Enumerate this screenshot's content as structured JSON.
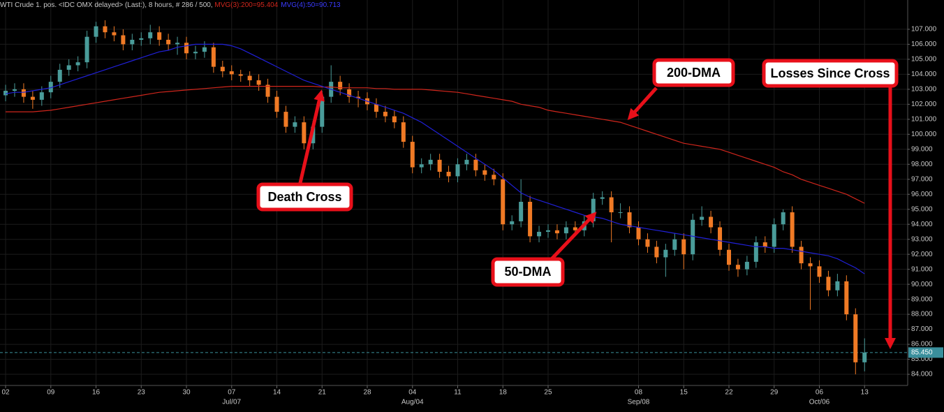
{
  "chart_data": {
    "type": "candlestick",
    "header": {
      "title": "WTI Crude 1. pos. <IDC OMX delayed> (Last:), 8 hours, # 286 / 500, "
    },
    "xlim": [
      -0.62,
      99.77
    ],
    "xticks": [
      {
        "value": 0,
        "label": "02"
      },
      {
        "value": 5,
        "label": "09"
      },
      {
        "value": 10,
        "label": "16"
      },
      {
        "value": 15,
        "label": "23"
      },
      {
        "value": 20,
        "label": "30"
      },
      {
        "value": 25,
        "label": "07"
      },
      {
        "value": 30,
        "label": "14"
      },
      {
        "value": 35,
        "label": "21"
      },
      {
        "value": 40,
        "label": "28"
      },
      {
        "value": 45,
        "label": "04"
      },
      {
        "value": 50,
        "label": "11"
      },
      {
        "value": 55,
        "label": "18"
      },
      {
        "value": 60,
        "label": "25"
      },
      {
        "value": 70,
        "label": "08"
      },
      {
        "value": 75,
        "label": "15"
      },
      {
        "value": 80,
        "label": "22"
      },
      {
        "value": 85,
        "label": "29"
      },
      {
        "value": 90,
        "label": "06"
      },
      {
        "value": 95,
        "label": "13"
      }
    ],
    "month_ticks": [
      {
        "value": 25,
        "label": "Jul/07"
      },
      {
        "value": 45,
        "label": "Aug/04"
      },
      {
        "value": 70,
        "label": "Sep/08"
      },
      {
        "value": 90,
        "label": "Oct/06"
      }
    ],
    "ylim": [
      83.35,
      108.3
    ],
    "yticks": [
      {
        "value": 84,
        "label": "84.000"
      },
      {
        "value": 85,
        "label": "85.000"
      },
      {
        "value": 86,
        "label": "86.000"
      },
      {
        "value": 87,
        "label": "87.000"
      },
      {
        "value": 88,
        "label": "88.000"
      },
      {
        "value": 89,
        "label": "89.000"
      },
      {
        "value": 90,
        "label": "90.000"
      },
      {
        "value": 91,
        "label": "91.000"
      },
      {
        "value": 92,
        "label": "92.000"
      },
      {
        "value": 93,
        "label": "93.000"
      },
      {
        "value": 94,
        "label": "94.000"
      },
      {
        "value": 95,
        "label": "95.000"
      },
      {
        "value": 96,
        "label": "96.000"
      },
      {
        "value": 97,
        "label": "97.000"
      },
      {
        "value": 98,
        "label": "98.000"
      },
      {
        "value": 99,
        "label": "99.000"
      },
      {
        "value": 100,
        "label": "100.000"
      },
      {
        "value": 101,
        "label": "101.000"
      },
      {
        "value": 102,
        "label": "102.000"
      },
      {
        "value": 103,
        "label": "103.000"
      },
      {
        "value": 104,
        "label": "104.000"
      },
      {
        "value": 105,
        "label": "105.000"
      },
      {
        "value": 106,
        "label": "106.000"
      },
      {
        "value": 107,
        "label": "107.000"
      }
    ],
    "grid": true,
    "last_price": {
      "value": 85.45,
      "label": "85.450",
      "color": "#3a8f9c"
    },
    "candles": {
      "up_color": "#4a9c9a",
      "down_color": "#f07a25",
      "open": [
        102.6,
        102.9,
        103.0,
        102.5,
        102.3,
        102.8,
        103.5,
        104.3,
        104.6,
        104.8,
        106.5,
        107.2,
        106.8,
        106.6,
        106.0,
        106.3,
        106.4,
        106.8,
        106.3,
        106.0,
        106.1,
        105.4,
        105.5,
        105.8,
        104.5,
        104.2,
        104.0,
        103.9,
        103.6,
        103.3,
        102.5,
        101.5,
        100.5,
        100.8,
        99.4,
        100.5,
        102.5,
        103.5,
        103.0,
        102.5,
        102.4,
        102.0,
        101.5,
        101.2,
        100.8,
        99.5,
        97.8,
        98.0,
        98.3,
        97.5,
        97.2,
        98.0,
        98.3,
        97.6,
        97.3,
        97.0,
        94.0,
        94.2,
        95.5,
        93.2,
        93.5,
        93.6,
        93.4,
        93.8,
        93.6,
        94.2,
        95.7,
        95.8,
        94.8,
        94.8,
        93.8,
        93.0,
        92.5,
        91.8,
        92.3,
        93.0,
        92.0,
        94.3,
        94.5,
        93.8,
        92.3,
        91.3,
        91.0,
        91.5,
        92.8,
        92.5,
        94.0,
        94.8,
        92.5,
        91.4,
        91.2,
        90.5,
        89.6,
        90.2,
        88.0,
        84.8
      ],
      "high": [
        103.3,
        103.4,
        103.4,
        102.9,
        103.2,
        103.9,
        104.7,
        105.0,
        105.2,
        106.9,
        107.5,
        107.6,
        107.2,
        107.0,
        106.7,
        106.8,
        107.3,
        107.2,
        106.7,
        106.5,
        106.5,
        105.9,
        106.2,
        106.1,
        104.9,
        104.6,
        104.3,
        104.2,
        104.0,
        103.7,
        102.9,
        101.9,
        101.2,
        101.2,
        100.9,
        102.9,
        104.6,
        103.9,
        103.4,
        102.9,
        102.8,
        102.4,
        101.9,
        101.6,
        101.2,
        99.9,
        98.4,
        98.7,
        98.7,
        97.9,
        98.4,
        98.7,
        98.7,
        98.0,
        97.7,
        97.4,
        94.6,
        97.0,
        95.9,
        93.9,
        94.0,
        94.0,
        94.2,
        94.2,
        94.6,
        96.1,
        96.2,
        96.2,
        95.4,
        95.2,
        94.2,
        93.4,
        92.9,
        92.7,
        93.4,
        93.4,
        94.7,
        95.2,
        94.9,
        94.2,
        92.7,
        91.7,
        91.9,
        93.2,
        93.2,
        94.4,
        95.0,
        95.2,
        92.9,
        91.8,
        91.6,
        90.9,
        90.7,
        90.6,
        88.4,
        86.4
      ],
      "low": [
        102.2,
        102.5,
        102.1,
        101.7,
        101.9,
        102.4,
        103.1,
        103.9,
        104.2,
        104.4,
        106.1,
        106.4,
        106.2,
        105.6,
        105.6,
        105.9,
        106.0,
        105.9,
        105.6,
        105.3,
        105.0,
        105.0,
        105.1,
        104.1,
        103.8,
        103.6,
        103.5,
        103.2,
        102.9,
        102.1,
        101.1,
        100.1,
        100.1,
        99.0,
        99.0,
        100.1,
        102.1,
        102.6,
        102.1,
        101.8,
        101.6,
        101.1,
        100.8,
        100.4,
        99.1,
        97.4,
        97.4,
        97.6,
        97.1,
        96.8,
        96.8,
        97.6,
        97.2,
        96.9,
        96.6,
        93.6,
        93.6,
        93.8,
        92.8,
        92.8,
        93.1,
        93.0,
        93.0,
        93.2,
        93.2,
        93.8,
        95.3,
        92.8,
        94.4,
        93.4,
        92.6,
        92.1,
        91.4,
        90.5,
        91.9,
        91.0,
        91.6,
        93.9,
        93.4,
        91.9,
        90.9,
        90.5,
        90.6,
        91.1,
        92.1,
        92.1,
        93.6,
        92.1,
        91.0,
        88.3,
        90.1,
        89.2,
        89.2,
        87.6,
        84.0,
        84.2
      ],
      "close": [
        102.9,
        103.0,
        102.5,
        102.3,
        102.8,
        103.5,
        104.3,
        104.6,
        104.8,
        106.5,
        107.2,
        106.8,
        106.6,
        106.0,
        106.3,
        106.4,
        106.8,
        106.3,
        106.0,
        106.1,
        105.4,
        105.5,
        105.8,
        104.5,
        104.2,
        104.0,
        103.9,
        103.6,
        103.3,
        102.5,
        101.5,
        100.5,
        100.8,
        99.4,
        100.5,
        102.5,
        103.5,
        103.0,
        102.5,
        102.4,
        102.0,
        101.5,
        101.2,
        100.8,
        99.5,
        97.8,
        98.0,
        98.3,
        97.5,
        97.2,
        98.0,
        98.3,
        97.6,
        97.3,
        97.0,
        94.0,
        94.2,
        95.5,
        93.2,
        93.5,
        93.6,
        93.4,
        93.8,
        93.6,
        94.2,
        95.7,
        95.8,
        94.8,
        94.8,
        93.8,
        93.0,
        92.5,
        91.8,
        92.3,
        93.0,
        92.0,
        94.3,
        94.5,
        93.8,
        92.3,
        91.3,
        91.0,
        91.5,
        92.8,
        92.5,
        94.0,
        94.8,
        92.5,
        91.4,
        91.2,
        90.5,
        89.6,
        90.2,
        88.0,
        84.8,
        85.45
      ]
    },
    "moving_averages": [
      {
        "name": "200-DMA",
        "label": "MVG(3):200=95.404",
        "color": "#d0261c",
        "values": [
          101.5,
          101.5,
          101.5,
          101.5,
          101.55,
          101.6,
          101.7,
          101.8,
          101.9,
          102.0,
          102.1,
          102.2,
          102.3,
          102.4,
          102.5,
          102.6,
          102.7,
          102.8,
          102.85,
          102.9,
          102.95,
          103.0,
          103.05,
          103.1,
          103.15,
          103.2,
          103.2,
          103.2,
          103.2,
          103.2,
          103.2,
          103.2,
          103.2,
          103.2,
          103.2,
          103.15,
          103.15,
          103.1,
          103.1,
          103.1,
          103.1,
          103.05,
          103.05,
          103.0,
          103.0,
          103.0,
          103.0,
          102.95,
          102.9,
          102.85,
          102.8,
          102.7,
          102.6,
          102.5,
          102.4,
          102.3,
          102.2,
          102.0,
          101.9,
          101.8,
          101.6,
          101.5,
          101.4,
          101.3,
          101.2,
          101.1,
          101.0,
          100.9,
          100.8,
          100.6,
          100.4,
          100.2,
          100.0,
          99.8,
          99.6,
          99.4,
          99.3,
          99.2,
          99.1,
          99.0,
          98.8,
          98.6,
          98.4,
          98.2,
          98.0,
          97.8,
          97.5,
          97.3,
          97.0,
          96.8,
          96.6,
          96.4,
          96.2,
          96.0,
          95.7,
          95.4
        ]
      },
      {
        "name": "50-DMA",
        "label": "MVG(4):50=90.713",
        "color": "#2020d8",
        "values": [
          102.7,
          102.8,
          102.8,
          102.9,
          103.0,
          103.1,
          103.3,
          103.5,
          103.7,
          103.9,
          104.1,
          104.3,
          104.5,
          104.7,
          104.9,
          105.1,
          105.3,
          105.5,
          105.6,
          105.8,
          105.9,
          106.0,
          106.0,
          106.0,
          106.0,
          105.9,
          105.7,
          105.4,
          105.1,
          104.8,
          104.5,
          104.2,
          103.9,
          103.6,
          103.4,
          103.2,
          103.0,
          102.8,
          102.6,
          102.4,
          102.2,
          102.0,
          101.8,
          101.6,
          101.4,
          101.1,
          100.8,
          100.4,
          100.0,
          99.6,
          99.2,
          98.8,
          98.4,
          98.0,
          97.6,
          97.1,
          96.6,
          96.1,
          95.8,
          95.6,
          95.4,
          95.2,
          95.0,
          94.8,
          94.6,
          94.5,
          94.4,
          94.2,
          94.0,
          93.9,
          93.8,
          93.7,
          93.6,
          93.5,
          93.4,
          93.3,
          93.2,
          93.1,
          93.0,
          92.9,
          92.8,
          92.7,
          92.6,
          92.5,
          92.5,
          92.4,
          92.4,
          92.3,
          92.2,
          92.1,
          92.0,
          91.9,
          91.7,
          91.4,
          91.1,
          90.7
        ]
      }
    ],
    "annotations": [
      {
        "text": "Death Cross"
      },
      {
        "text": "Losses Since Cross"
      }
    ]
  }
}
